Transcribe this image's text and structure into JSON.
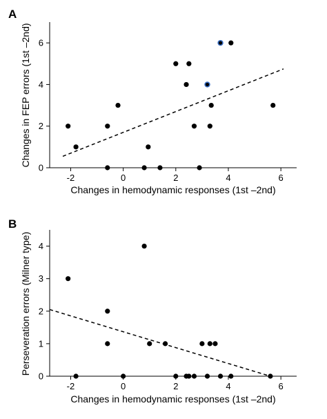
{
  "chart_data": [
    {
      "type": "scatter",
      "panel_label": "A",
      "xlabel": "Changes in hemodynamic responses (1st –2nd)",
      "ylabel": "Changes in FEP errors (1st –2nd)",
      "xlim": [
        -2.8,
        6.6
      ],
      "ylim": [
        0,
        7
      ],
      "xticks": [
        -2,
        0,
        2,
        4,
        6
      ],
      "yticks": [
        0,
        2,
        4,
        6
      ],
      "points": [
        {
          "x": -2.1,
          "y": 2
        },
        {
          "x": -1.8,
          "y": 1
        },
        {
          "x": -0.6,
          "y": 2
        },
        {
          "x": -0.6,
          "y": 0
        },
        {
          "x": -0.2,
          "y": 3
        },
        {
          "x": 0.8,
          "y": 0
        },
        {
          "x": 0.95,
          "y": 1
        },
        {
          "x": 1.4,
          "y": 0
        },
        {
          "x": 2.0,
          "y": 5
        },
        {
          "x": 2.4,
          "y": 4
        },
        {
          "x": 2.5,
          "y": 5
        },
        {
          "x": 2.7,
          "y": 2
        },
        {
          "x": 2.9,
          "y": 0
        },
        {
          "x": 3.2,
          "y": 4,
          "highlight": true
        },
        {
          "x": 3.3,
          "y": 2
        },
        {
          "x": 3.35,
          "y": 3
        },
        {
          "x": 3.7,
          "y": 6,
          "highlight": true
        },
        {
          "x": 4.1,
          "y": 6
        },
        {
          "x": 5.7,
          "y": 3
        }
      ],
      "trendline": {
        "x": [
          -2.3,
          6.1
        ],
        "y": [
          0.55,
          4.75
        ]
      },
      "highlight_color": "#3a6fc4"
    },
    {
      "type": "scatter",
      "panel_label": "B",
      "xlabel": "Changes in hemodynamic responses (1st –2nd)",
      "ylabel": "Perseveration errors (Milner type)",
      "xlim": [
        -2.8,
        6.6
      ],
      "ylim": [
        0,
        4.5
      ],
      "xticks": [
        -2,
        0,
        2,
        4,
        6
      ],
      "yticks": [
        0,
        1,
        2,
        3,
        4
      ],
      "points": [
        {
          "x": -2.1,
          "y": 3
        },
        {
          "x": -1.8,
          "y": 0
        },
        {
          "x": -0.6,
          "y": 2
        },
        {
          "x": -0.6,
          "y": 1
        },
        {
          "x": 0.0,
          "y": 0
        },
        {
          "x": 0.8,
          "y": 4
        },
        {
          "x": 1.0,
          "y": 1
        },
        {
          "x": 1.6,
          "y": 1
        },
        {
          "x": 2.0,
          "y": 0
        },
        {
          "x": 2.4,
          "y": 0
        },
        {
          "x": 2.5,
          "y": 0
        },
        {
          "x": 2.7,
          "y": 0
        },
        {
          "x": 3.0,
          "y": 1
        },
        {
          "x": 3.2,
          "y": 0
        },
        {
          "x": 3.3,
          "y": 1
        },
        {
          "x": 3.5,
          "y": 1
        },
        {
          "x": 3.7,
          "y": 0
        },
        {
          "x": 4.1,
          "y": 0
        },
        {
          "x": 5.6,
          "y": 0
        }
      ],
      "trendline": {
        "x": [
          -2.8,
          5.6
        ],
        "y": [
          2.05,
          0.0
        ]
      }
    }
  ]
}
